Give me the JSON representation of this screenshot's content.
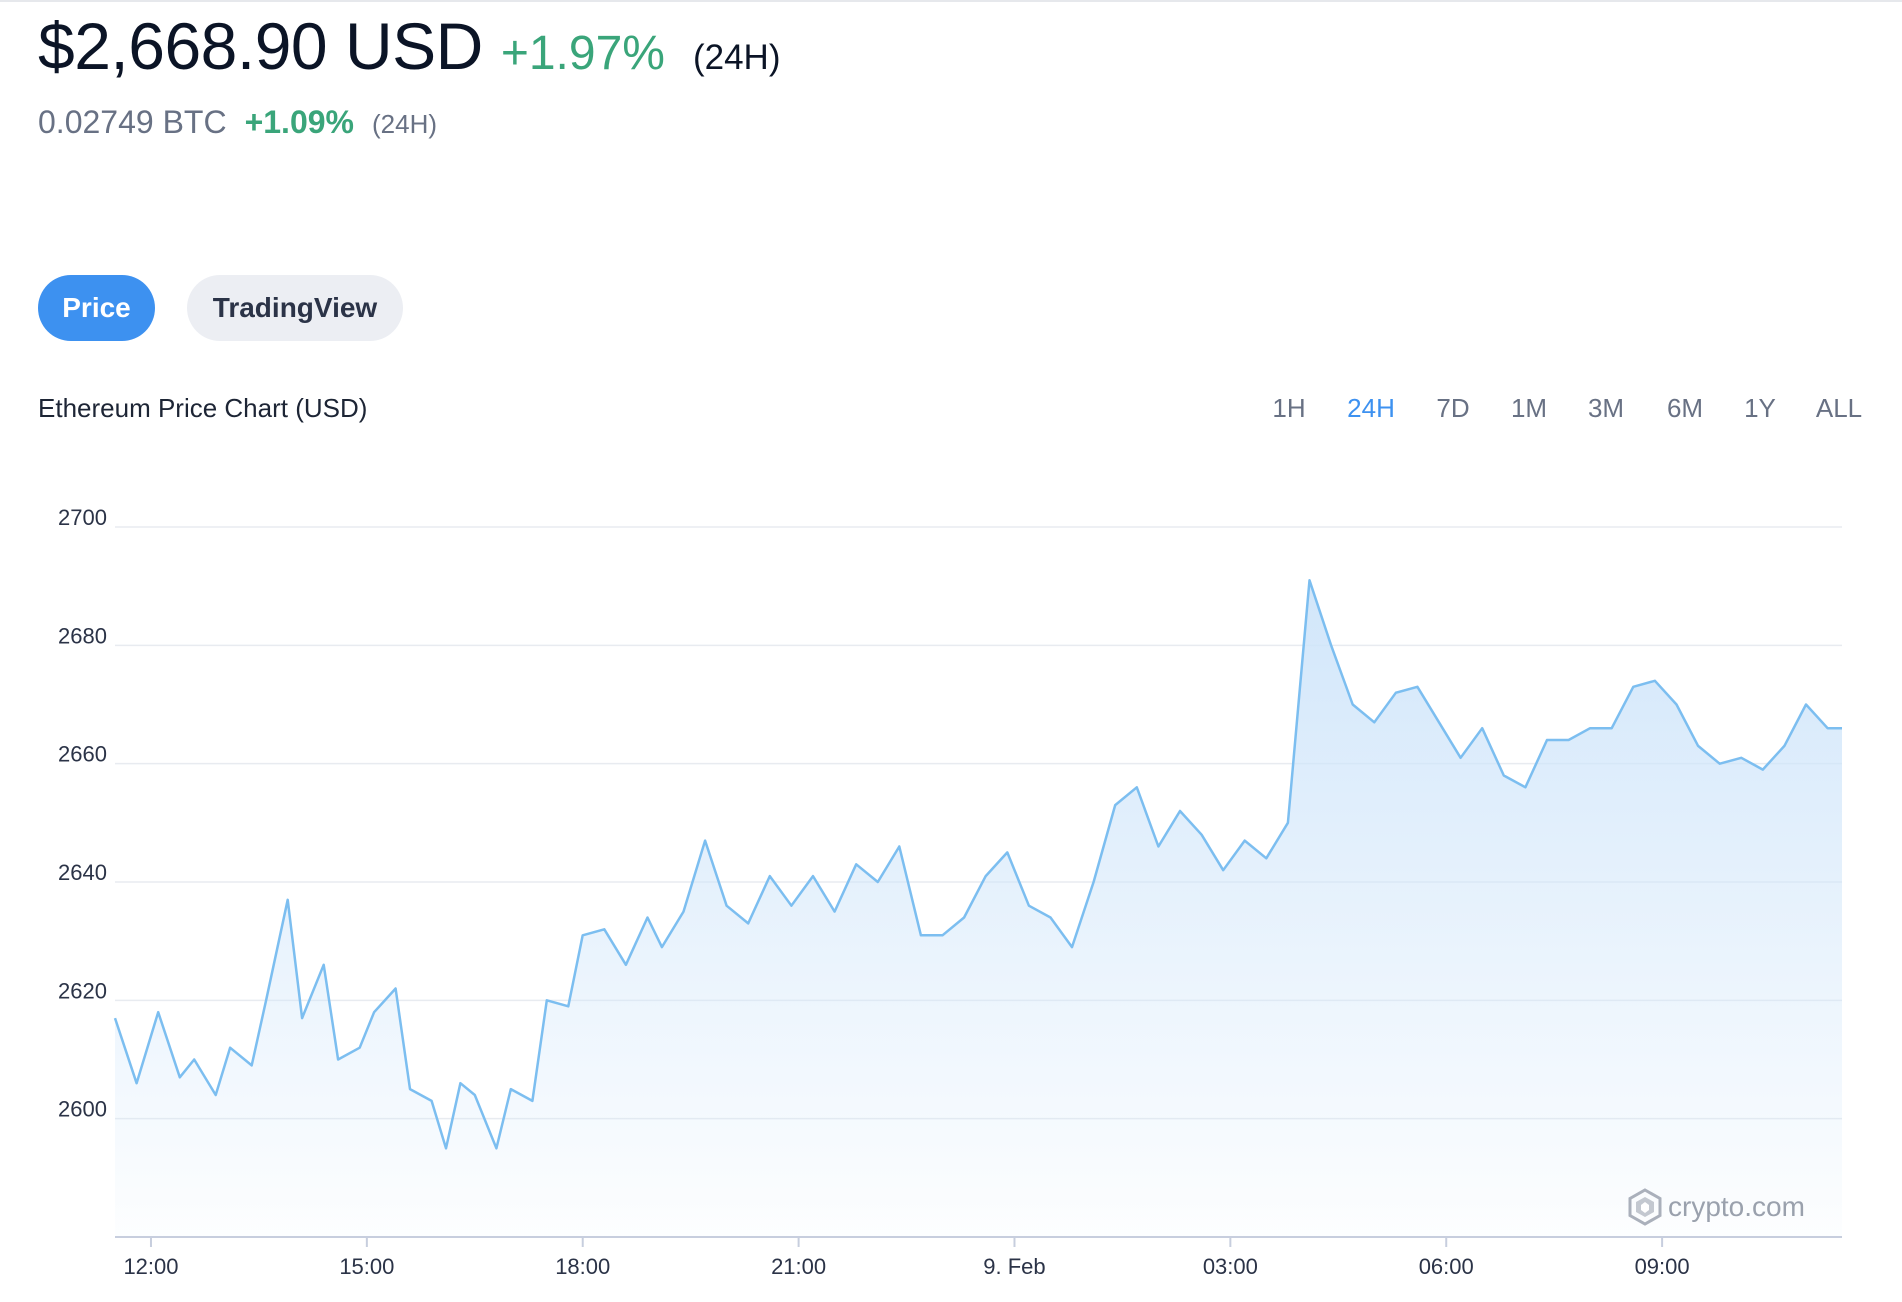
{
  "header": {
    "price": "$2,668.90 USD",
    "change": "+1.97%",
    "period": "(24H)",
    "btc_value": "0.02749 BTC",
    "btc_change": "+1.09%",
    "btc_period": "(24H)"
  },
  "tabs": [
    {
      "label": "Price",
      "active": true
    },
    {
      "label": "TradingView",
      "active": false
    }
  ],
  "ranges": [
    {
      "label": "1H",
      "active": false
    },
    {
      "label": "24H",
      "active": true
    },
    {
      "label": "7D",
      "active": false
    },
    {
      "label": "1M",
      "active": false
    },
    {
      "label": "3M",
      "active": false
    },
    {
      "label": "6M",
      "active": false
    },
    {
      "label": "1Y",
      "active": false
    },
    {
      "label": "ALL",
      "active": false
    }
  ],
  "watermark": "crypto.com",
  "colors": {
    "accent": "#3d91f0",
    "positive": "#3aa57a",
    "line": "#7cbef0"
  },
  "chart_data": {
    "type": "area",
    "title": "Ethereum Price Chart (USD)",
    "xlabel": "",
    "ylabel": "",
    "ylim": [
      2580,
      2700
    ],
    "y_ticks": [
      2600,
      2620,
      2640,
      2660,
      2680,
      2700
    ],
    "x_tick_labels": [
      "12:00",
      "15:00",
      "18:00",
      "21:00",
      "9. Feb",
      "03:00",
      "06:00",
      "09:00"
    ],
    "x_hour_range": [
      11.5,
      35.5
    ],
    "grid": true,
    "series": [
      {
        "x": [
          11.5,
          11.8,
          12.1,
          12.4,
          12.6,
          12.9,
          13.1,
          13.4,
          13.6,
          13.9,
          14.1,
          14.4,
          14.6,
          14.9,
          15.1,
          15.4,
          15.6,
          15.9,
          16.1,
          16.3,
          16.5,
          16.8,
          17.0,
          17.3,
          17.5,
          17.8,
          18.0,
          18.3,
          18.6,
          18.9,
          19.1,
          19.4,
          19.7,
          20.0,
          20.3,
          20.6,
          20.9,
          21.2,
          21.5,
          21.8,
          22.1,
          22.4,
          22.7,
          23.0,
          23.3,
          23.6,
          23.9,
          24.2,
          24.5,
          24.8,
          25.1,
          25.4,
          25.7,
          26.0,
          26.3,
          26.6,
          26.9,
          27.2,
          27.5,
          27.8,
          28.1,
          28.4,
          28.7,
          29.0,
          29.3,
          29.6,
          29.9,
          30.2,
          30.5,
          30.8,
          31.1,
          31.4,
          31.7,
          32.0,
          32.3,
          32.6,
          32.9,
          33.2,
          33.5,
          33.8,
          34.1,
          34.4,
          34.7,
          35.0,
          35.3,
          35.5
        ],
        "values": [
          2617,
          2606,
          2618,
          2607,
          2610,
          2604,
          2612,
          2609,
          2620,
          2637,
          2617,
          2626,
          2610,
          2612,
          2618,
          2622,
          2605,
          2603,
          2595,
          2606,
          2604,
          2595,
          2605,
          2603,
          2620,
          2619,
          2631,
          2632,
          2626,
          2634,
          2629,
          2635,
          2647,
          2636,
          2633,
          2641,
          2636,
          2641,
          2635,
          2643,
          2640,
          2646,
          2631,
          2631,
          2634,
          2641,
          2645,
          2636,
          2634,
          2629,
          2640,
          2653,
          2656,
          2646,
          2652,
          2648,
          2642,
          2647,
          2644,
          2650,
          2691,
          2680,
          2670,
          2667,
          2672,
          2673,
          2667,
          2661,
          2666,
          2658,
          2656,
          2664,
          2664,
          2666,
          2666,
          2673,
          2674,
          2670,
          2663,
          2660,
          2661,
          2659,
          2663,
          2670,
          2666,
          2666
        ]
      }
    ]
  }
}
